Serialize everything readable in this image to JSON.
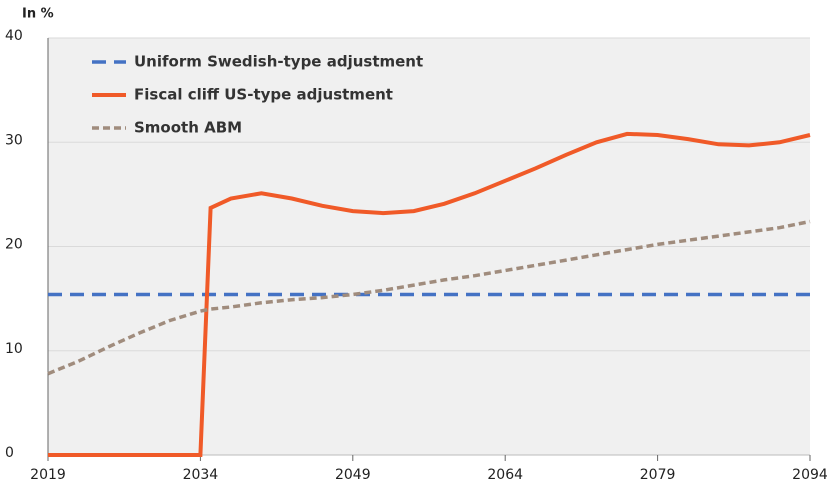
{
  "chart_data": {
    "type": "line",
    "ylabel": "In %",
    "x": [
      2019,
      2022,
      2025,
      2028,
      2031,
      2034,
      2035,
      2037,
      2040,
      2043,
      2046,
      2049,
      2052,
      2055,
      2058,
      2061,
      2064,
      2067,
      2070,
      2073,
      2076,
      2079,
      2082,
      2085,
      2088,
      2091,
      2094
    ],
    "series": [
      {
        "name": "Uniform Swedish-type adjustment",
        "color": "#4472c4",
        "linestyle": "dashed",
        "values": [
          15.4,
          15.4,
          15.4,
          15.4,
          15.4,
          15.4,
          15.4,
          15.4,
          15.4,
          15.4,
          15.4,
          15.4,
          15.4,
          15.4,
          15.4,
          15.4,
          15.4,
          15.4,
          15.4,
          15.4,
          15.4,
          15.4,
          15.4,
          15.4,
          15.4,
          15.4,
          15.4
        ]
      },
      {
        "name": "Fiscal cliff US-type adjustment",
        "color": "#f05a28",
        "linestyle": "solid",
        "values": [
          0,
          0,
          0,
          0,
          0,
          0,
          23.7,
          24.6,
          25.1,
          24.6,
          23.9,
          23.4,
          23.2,
          23.4,
          24.1,
          25.1,
          26.3,
          27.5,
          28.8,
          30.0,
          30.8,
          30.7,
          30.3,
          29.8,
          29.7,
          30.0,
          30.7
        ]
      },
      {
        "name": "Smooth ABM",
        "color": "#a08c7d",
        "linestyle": "dotted",
        "values": [
          7.8,
          9.0,
          10.4,
          11.7,
          12.9,
          13.8,
          14.0,
          14.2,
          14.6,
          14.9,
          15.1,
          15.4,
          15.8,
          16.3,
          16.8,
          17.2,
          17.7,
          18.2,
          18.7,
          19.2,
          19.7,
          20.2,
          20.6,
          21.0,
          21.4,
          21.8,
          22.4
        ]
      }
    ],
    "xlim": [
      2019,
      2094
    ],
    "xticks": [
      2019,
      2034,
      2049,
      2064,
      2079,
      2094
    ],
    "ylim": [
      0,
      40
    ],
    "yticks": [
      0,
      10,
      20,
      30,
      40
    ],
    "grid": true,
    "legend": "upper left"
  }
}
